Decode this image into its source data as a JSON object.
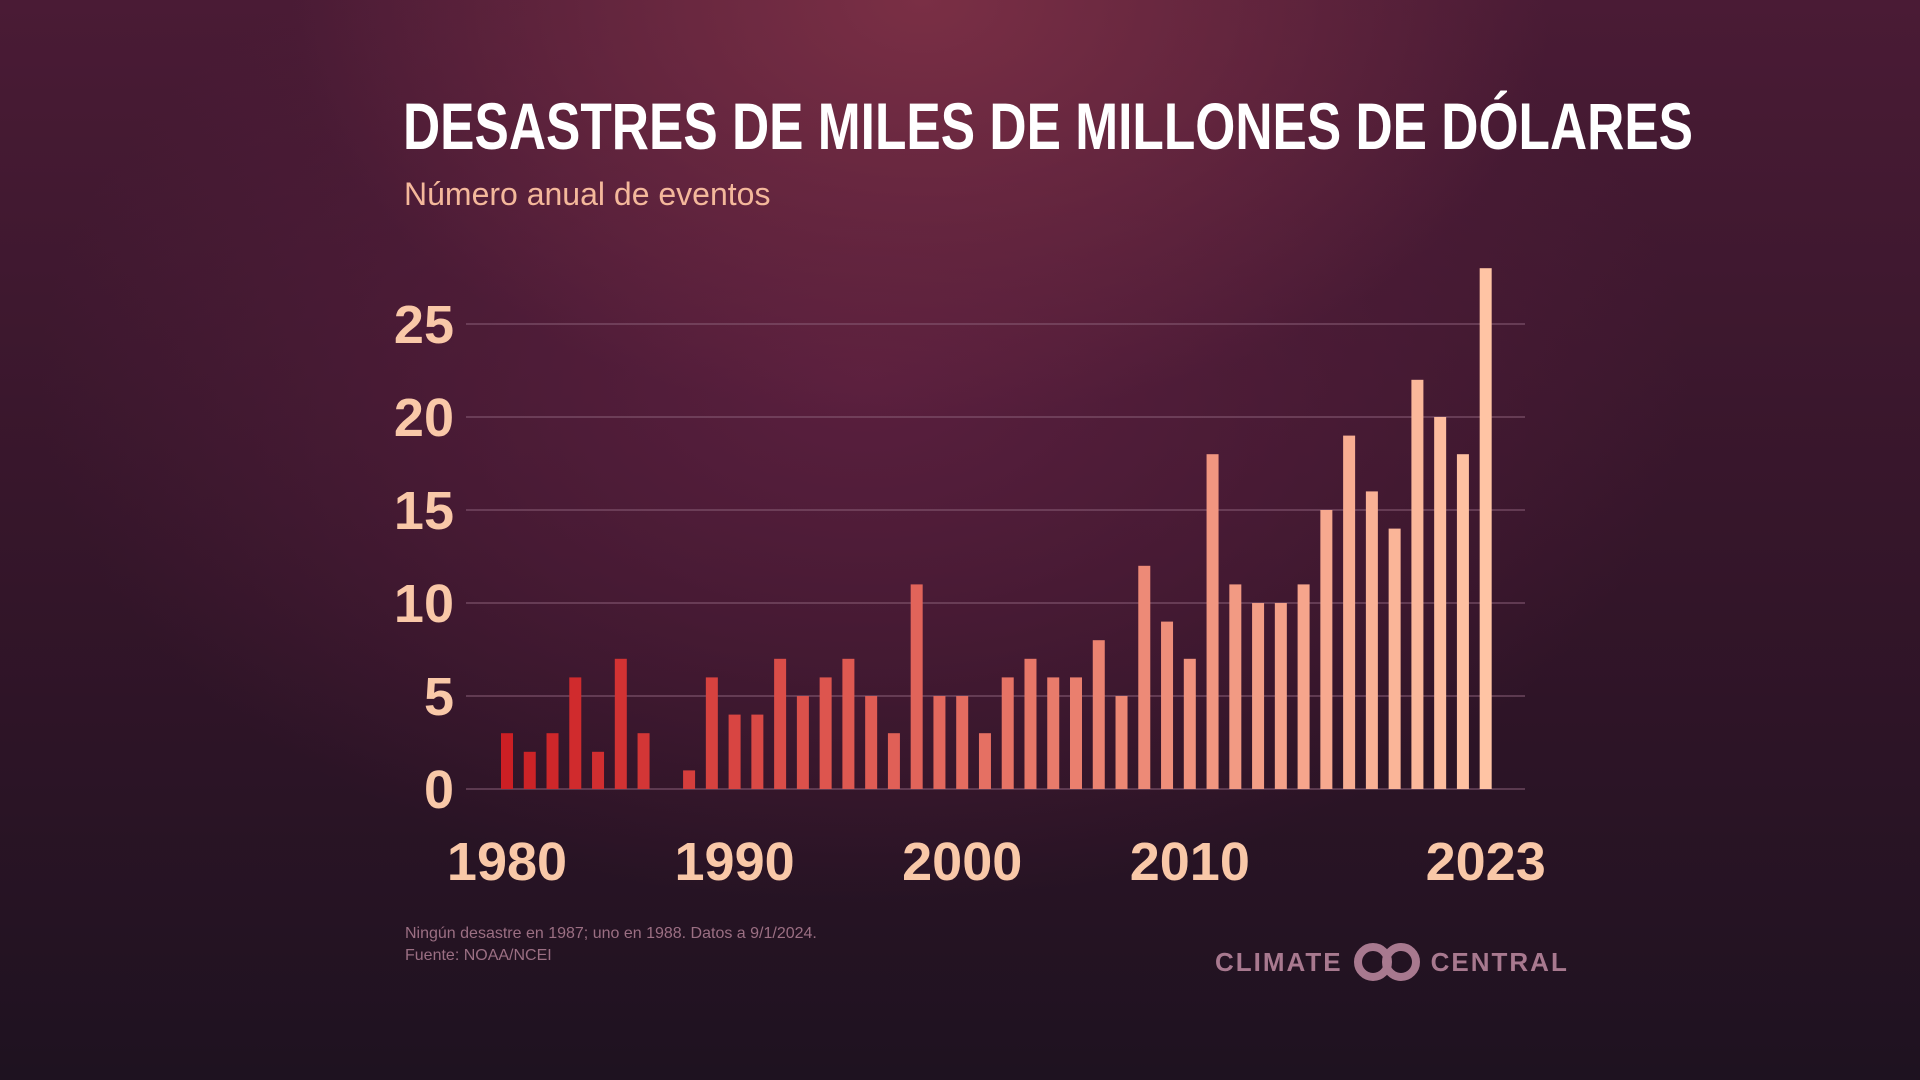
{
  "title": "DESASTRES DE MILES DE MILLONES DE DÓLARES",
  "subtitle": "Número anual de eventos",
  "note_line1": "Ningún desastre en 1987; uno en 1988. Datos a 9/1/2024.",
  "note_line2": "Fuente: NOAA/NCEI",
  "logo": {
    "left_word": "CLIMATE",
    "right_word": "CENTRAL",
    "icon": "climate-central-logo-icon"
  },
  "colors": {
    "bar_start": "#cc1f24",
    "bar_end": "#ffc4a4",
    "tick_label": "#f9c8a8",
    "grid": "#8a5f78"
  },
  "chart_data": {
    "type": "bar",
    "title": "DESASTRES DE MILES DE MILLONES DE DÓLARES",
    "subtitle": "Número anual de eventos",
    "xlabel": "",
    "ylabel": "",
    "ylim": [
      0,
      28
    ],
    "yticks": [
      0,
      5,
      10,
      15,
      20,
      25
    ],
    "xtick_labels": [
      "1980",
      "1990",
      "2000",
      "2010",
      "2023"
    ],
    "categories": [
      1980,
      1981,
      1982,
      1983,
      1984,
      1985,
      1986,
      1987,
      1988,
      1989,
      1990,
      1991,
      1992,
      1993,
      1994,
      1995,
      1996,
      1997,
      1998,
      1999,
      2000,
      2001,
      2002,
      2003,
      2004,
      2005,
      2006,
      2007,
      2008,
      2009,
      2010,
      2011,
      2012,
      2013,
      2014,
      2015,
      2016,
      2017,
      2018,
      2019,
      2020,
      2021,
      2022,
      2023
    ],
    "values": [
      3,
      2,
      3,
      6,
      2,
      7,
      3,
      0,
      1,
      6,
      4,
      4,
      7,
      5,
      6,
      7,
      5,
      3,
      11,
      5,
      5,
      3,
      6,
      7,
      6,
      6,
      8,
      5,
      12,
      9,
      7,
      18,
      11,
      10,
      10,
      11,
      15,
      19,
      16,
      14,
      22,
      20,
      18,
      28
    ],
    "grid": true,
    "source": "NOAA/NCEI"
  }
}
